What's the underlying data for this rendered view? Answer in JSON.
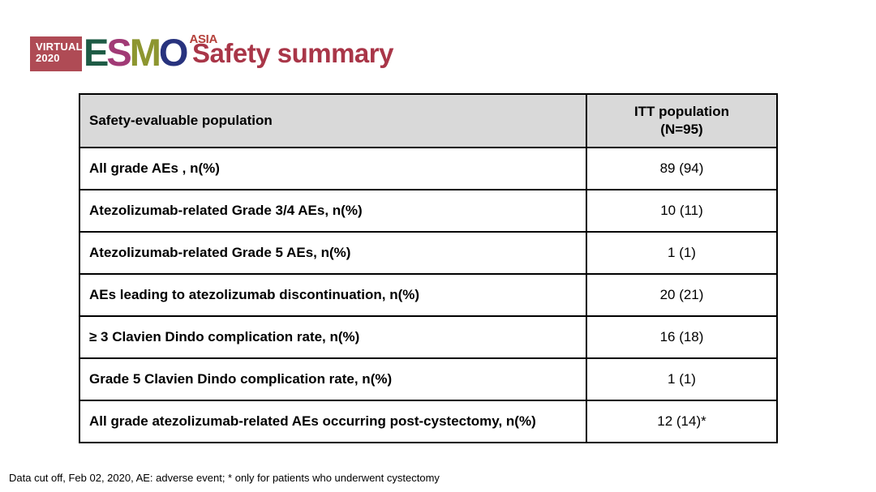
{
  "logo": {
    "virtual_line1": "VIRTUAL",
    "virtual_line2": "2020",
    "box_color": "#AF4B55",
    "letters": [
      {
        "char": "E",
        "color": "#1E5B45"
      },
      {
        "char": "S",
        "color": "#A13A76"
      },
      {
        "char": "M",
        "color": "#8D9630"
      },
      {
        "char": "O",
        "color": "#28337E"
      }
    ],
    "region": "ASIA",
    "region_color": "#B5413B"
  },
  "header": {
    "title": "Safety summary",
    "title_color": "#A93648"
  },
  "table": {
    "header_bg": "#D9D9D9",
    "columns": {
      "population_label": "Safety-evaluable population",
      "itt_line1": "ITT population",
      "itt_line2": "(N=95)"
    },
    "rows": [
      {
        "label": "All grade AEs , n(%)",
        "value": "89 (94)"
      },
      {
        "label": "Atezolizumab-related Grade 3/4 AEs, n(%)",
        "value": "10 (11)"
      },
      {
        "label": "Atezolizumab-related Grade 5 AEs, n(%)",
        "value": "1 (1)"
      },
      {
        "label": "AEs leading to atezolizumab discontinuation, n(%)",
        "value": "20 (21)"
      },
      {
        "label": "≥ 3 Clavien Dindo complication rate, n(%)",
        "value": "16 (18)"
      },
      {
        "label": "Grade 5 Clavien Dindo complication rate, n(%)",
        "value": "1 (1)"
      },
      {
        "label": "All grade atezolizumab-related AEs occurring post-cystectomy, n(%)",
        "value": "12 (14)*"
      }
    ]
  },
  "footnote": "Data cut off, Feb 02, 2020, AE: adverse event; * only for patients who underwent cystectomy"
}
